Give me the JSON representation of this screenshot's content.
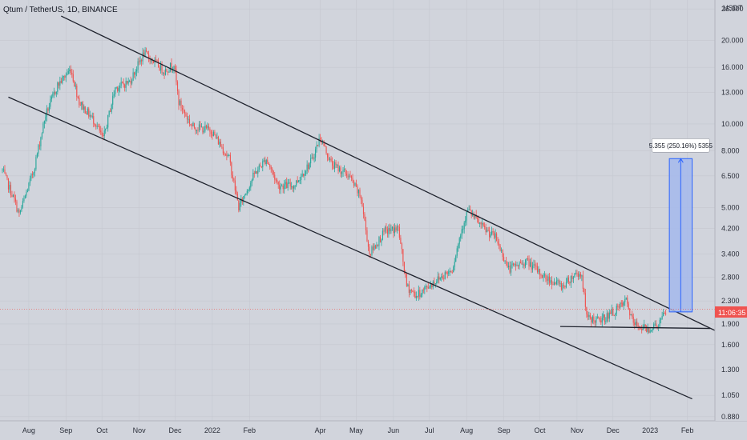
{
  "header": {
    "symbol_title": "Qtum / TetherUS, 1D, BINANCE",
    "currency": "USDT"
  },
  "price_axis": {
    "ticks": [
      "26.000",
      "20.000",
      "16.000",
      "13.000",
      "10.000",
      "8.000",
      "6.500",
      "5.000",
      "4.200",
      "3.400",
      "2.800",
      "2.300",
      "1.900",
      "1.600",
      "1.300",
      "1.050",
      "0.880"
    ],
    "countdown_label": "11:06:35"
  },
  "time_axis": {
    "ticks": [
      "Aug",
      "Sep",
      "Oct",
      "Nov",
      "Dec",
      "2022",
      "Feb",
      "Apr",
      "May",
      "Jun",
      "Jul",
      "Aug",
      "Sep",
      "Oct",
      "Nov",
      "Dec",
      "2023",
      "Feb"
    ]
  },
  "measure_tool": {
    "label": "5.355 (250.16%) 5355"
  },
  "colors": {
    "background": "#d1d4dc",
    "up_candle": "#26a69a",
    "down_candle": "#ef5350",
    "trendline": "#1e222d",
    "measure_fill": "#a4b8ec",
    "measure_line": "#2962ff",
    "price_label_bg": "#ef5350"
  },
  "chart_data": {
    "type": "candlestick",
    "y_scale": "log",
    "ylim": [
      0.85,
      28
    ],
    "x_range": [
      "2021-07-08",
      "2023-02-24"
    ],
    "price_path": [
      [
        "2021-07-10",
        6.8
      ],
      [
        "2021-07-20",
        5.3
      ],
      [
        "2021-07-24",
        4.7
      ],
      [
        "2021-08-05",
        6.8
      ],
      [
        "2021-08-15",
        10.8
      ],
      [
        "2021-08-25",
        13.8
      ],
      [
        "2021-09-05",
        15.8
      ],
      [
        "2021-09-12",
        12.0
      ],
      [
        "2021-09-25",
        10.2
      ],
      [
        "2021-10-02",
        8.8
      ],
      [
        "2021-10-12",
        13.5
      ],
      [
        "2021-10-24",
        14.2
      ],
      [
        "2021-11-05",
        18.0
      ],
      [
        "2021-11-12",
        17.0
      ],
      [
        "2021-11-22",
        15.5
      ],
      [
        "2021-11-30",
        16.5
      ],
      [
        "2021-12-04",
        12.0
      ],
      [
        "2021-12-15",
        9.8
      ],
      [
        "2021-12-31",
        9.5
      ],
      [
        "2022-01-15",
        7.5
      ],
      [
        "2022-01-23",
        5.0
      ],
      [
        "2022-02-05",
        6.6
      ],
      [
        "2022-02-15",
        7.5
      ],
      [
        "2022-02-25",
        6.0
      ],
      [
        "2022-03-10",
        6.0
      ],
      [
        "2022-03-25",
        7.4
      ],
      [
        "2022-04-01",
        9.0
      ],
      [
        "2022-04-10",
        7.2
      ],
      [
        "2022-04-25",
        6.5
      ],
      [
        "2022-05-05",
        5.4
      ],
      [
        "2022-05-12",
        3.4
      ],
      [
        "2022-05-25",
        4.1
      ],
      [
        "2022-06-05",
        4.2
      ],
      [
        "2022-06-12",
        2.6
      ],
      [
        "2022-06-20",
        2.4
      ],
      [
        "2022-07-05",
        2.7
      ],
      [
        "2022-07-20",
        3.0
      ],
      [
        "2022-07-28",
        4.2
      ],
      [
        "2022-08-02",
        4.9
      ],
      [
        "2022-08-15",
        4.2
      ],
      [
        "2022-08-25",
        3.9
      ],
      [
        "2022-09-05",
        3.0
      ],
      [
        "2022-09-20",
        3.2
      ],
      [
        "2022-10-05",
        2.8
      ],
      [
        "2022-10-20",
        2.6
      ],
      [
        "2022-10-31",
        2.9
      ],
      [
        "2022-11-05",
        2.85
      ],
      [
        "2022-11-09",
        2.0
      ],
      [
        "2022-11-20",
        1.95
      ],
      [
        "2022-12-05",
        2.15
      ],
      [
        "2022-12-12",
        2.3
      ],
      [
        "2022-12-18",
        1.9
      ],
      [
        "2022-12-30",
        1.82
      ],
      [
        "2023-01-08",
        1.9
      ],
      [
        "2023-01-14",
        2.1
      ]
    ],
    "trendlines": [
      {
        "from": [
          "2021-08-28",
          24.5
        ],
        "to": [
          "2023-02-24",
          1.8
        ]
      },
      {
        "from": [
          "2021-07-15",
          12.5
        ],
        "to": [
          "2023-02-05",
          1.02
        ]
      },
      {
        "from": [
          "2022-10-18",
          1.86
        ],
        "to": [
          "2023-02-20",
          1.83
        ]
      }
    ],
    "measure_range": {
      "x": [
        "2023-01-17",
        "2023-02-05"
      ],
      "y": [
        2.1,
        7.5
      ],
      "change": 5.355,
      "percent": 250.16
    },
    "last_price_date": "2023-01-14",
    "last_price": 2.15,
    "grid": true
  }
}
